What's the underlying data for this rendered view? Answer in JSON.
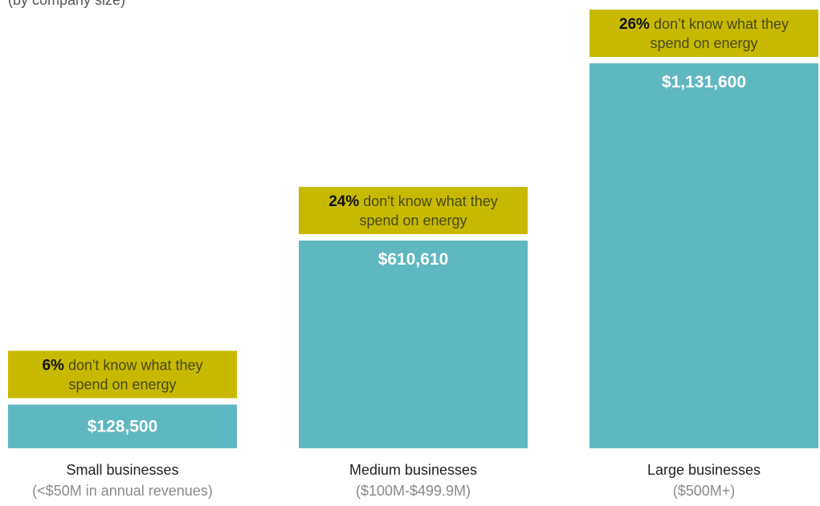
{
  "header_fragment": "(by company size)",
  "chart_data": {
    "type": "bar",
    "title": "",
    "xlabel": "",
    "ylabel": "",
    "ylim": [
      0,
      1131600
    ],
    "grid": false,
    "categories": [
      "Small businesses",
      "Medium businesses",
      "Large businesses"
    ],
    "category_subtitles": [
      "(<$50M in annual revenues)",
      "($100M-$499.9M)",
      "($500M+)"
    ],
    "values": [
      128500,
      610610,
      1131600
    ],
    "value_labels": [
      "$128,500",
      "$610,610",
      "$1,131,600"
    ],
    "annotations": [
      {
        "percent": "6%",
        "text_line1": "don't know what they",
        "text_line2": "spend on energy"
      },
      {
        "percent": "24%",
        "text_line1": "don't know what they",
        "text_line2": "spend on energy"
      },
      {
        "percent": "26%",
        "text_line1": "don’t know what they",
        "text_line2": "spend on energy"
      }
    ],
    "colors": {
      "bar": "#5fb7c1",
      "annotation_box": "#c8b900",
      "annotation_text": "#4a4a1a",
      "annotation_percent": "#111111",
      "value_label": "#ffffff",
      "category": "#222222",
      "subtitle": "#8a8a8a"
    }
  }
}
